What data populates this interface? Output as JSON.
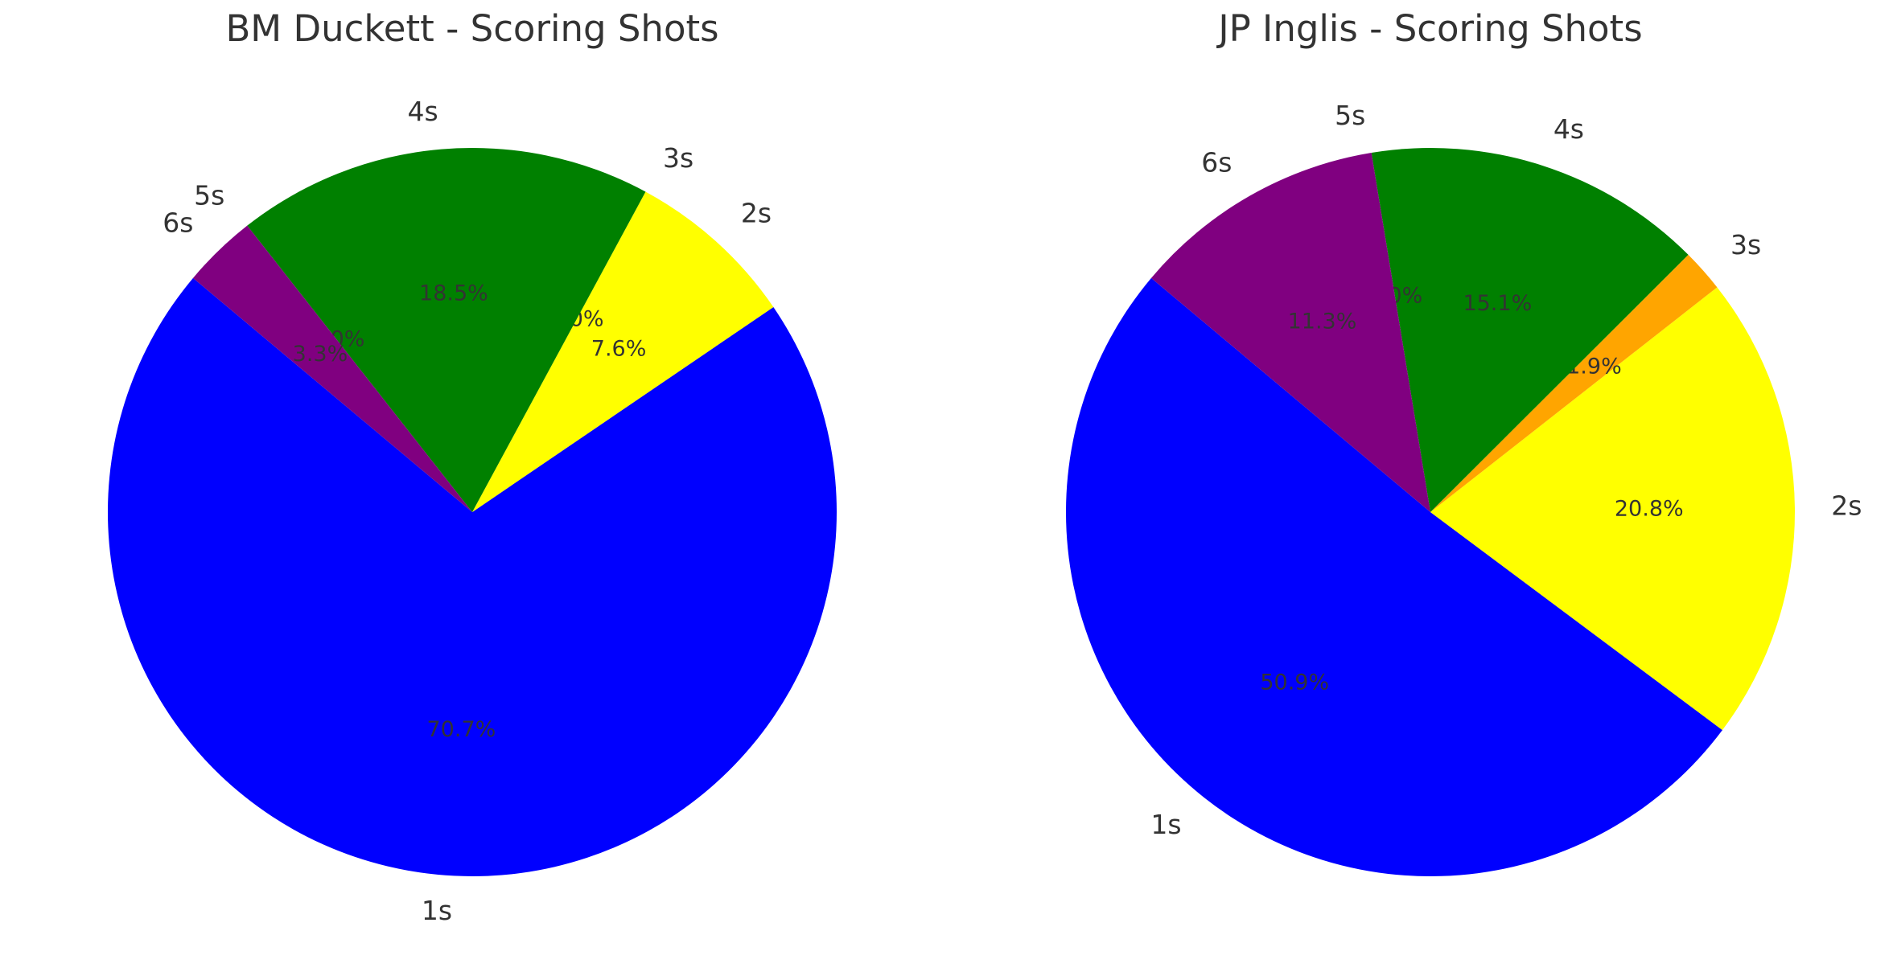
{
  "chart_data": [
    {
      "type": "pie",
      "title": "BM Duckett - Scoring Shots",
      "categories": [
        "1s",
        "2s",
        "3s",
        "4s",
        "5s",
        "6s"
      ],
      "values": [
        70.7,
        7.6,
        0.0,
        18.5,
        0.0,
        3.3
      ],
      "value_labels": [
        "70.7%",
        "7.6%",
        "0.0%",
        "18.5%",
        "0.0%",
        "3.3%"
      ],
      "colors": [
        "#0000ff",
        "#ffff00",
        "#ffa500",
        "#008000",
        "#ff0000",
        "#800080"
      ]
    },
    {
      "type": "pie",
      "title": "JP Inglis - Scoring Shots",
      "categories": [
        "1s",
        "2s",
        "3s",
        "4s",
        "5s",
        "6s"
      ],
      "values": [
        50.9,
        20.8,
        1.9,
        15.1,
        0.0,
        11.3
      ],
      "value_labels": [
        "50.9%",
        "20.8%",
        "1.9%",
        "15.1%",
        "0.0%",
        "11.3%"
      ],
      "colors": [
        "#0000ff",
        "#ffff00",
        "#ffa500",
        "#008000",
        "#ff0000",
        "#800080"
      ]
    }
  ]
}
